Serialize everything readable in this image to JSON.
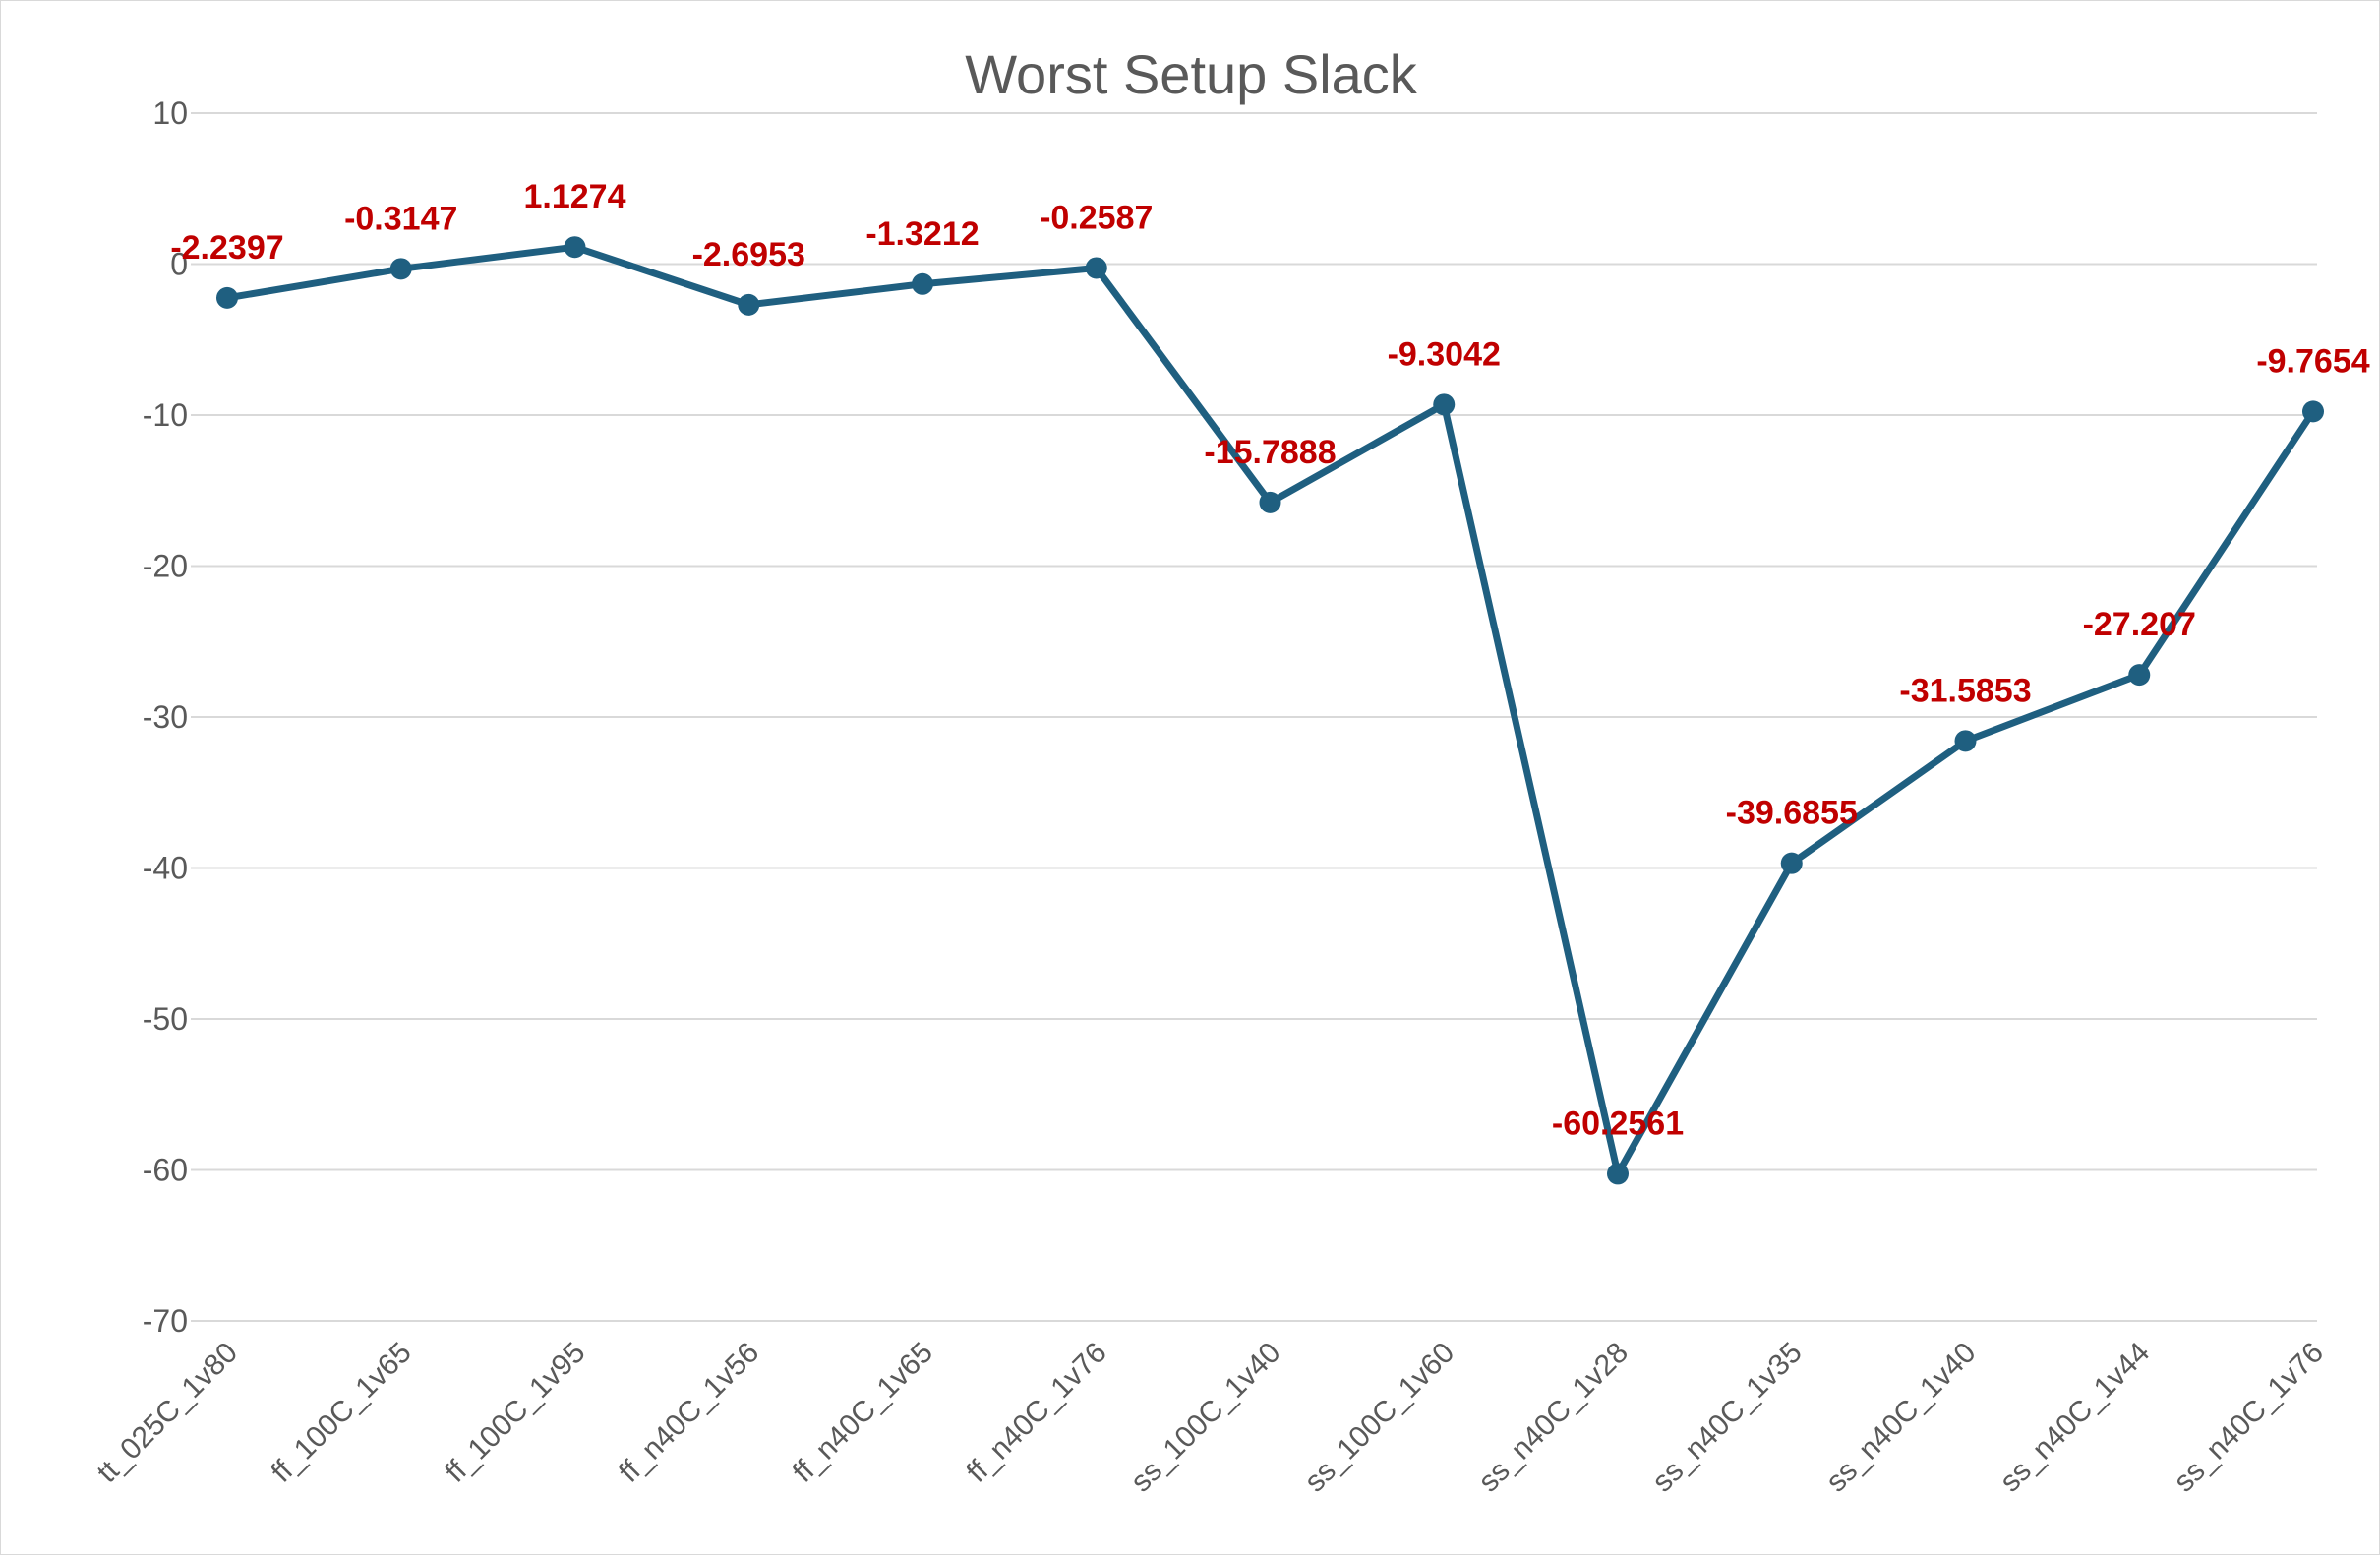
{
  "chart_data": {
    "type": "line",
    "title": "Worst Setup Slack",
    "xlabel": "",
    "ylabel": "",
    "ylim": [
      -70,
      10
    ],
    "yticks": [
      10,
      0,
      -10,
      -20,
      -30,
      -40,
      -50,
      -60,
      -70
    ],
    "grid": true,
    "legend": "none",
    "categories": [
      "tt_025C_1v80",
      "ff_100C_1v65",
      "ff_100C_1v95",
      "ff_n40C_1v56",
      "ff_n40C_1v65",
      "ff_n40C_1v76",
      "ss_100C_1v40",
      "ss_100C_1v60",
      "ss_n40C_1v28",
      "ss_n40C_1v35",
      "ss_n40C_1v40",
      "ss_n40C_1v44",
      "ss_n40C_1v76"
    ],
    "series": [
      {
        "values": [
          -2.2397,
          -0.3147,
          1.1274,
          -2.6953,
          -1.3212,
          -0.2587,
          -15.7888,
          -9.3042,
          -60.2561,
          -39.6855,
          -31.5853,
          -27.207,
          -9.7654
        ],
        "data_labels": [
          "-2.2397",
          "-0.3147",
          "1.1274",
          "-2.6953",
          "-1.3212",
          "-0.2587",
          "-15.7888",
          "-9.3042",
          "-60.2561",
          "-39.6855",
          "-31.5853",
          "-27.207",
          "-9.7654"
        ]
      }
    ],
    "colors": {
      "line": "#1f5f80",
      "label": "#c00000",
      "grid": "#d9d9d9",
      "text": "#595959"
    }
  }
}
